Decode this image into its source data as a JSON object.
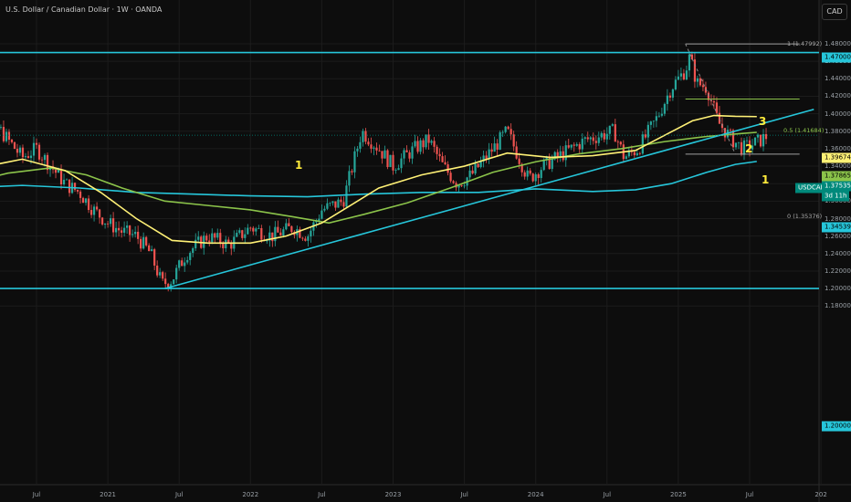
{
  "header": {
    "title": "U.S. Dollar / Canadian Dollar · 1W · OANDA",
    "currency": "CAD"
  },
  "price_axis": [
    "1.48000",
    "1.46000",
    "1.44000",
    "1.42000",
    "1.40000",
    "1.38000",
    "1.36000",
    "1.34000",
    "1.32000",
    "1.30000",
    "1.28000",
    "1.26000",
    "1.24000",
    "1.22000",
    "1.20000",
    "1.18000"
  ],
  "badges": {
    "res": "1.47000",
    "ma_yellow": "1.39674",
    "ma_green": "1.37865",
    "symbol": "USDCAD",
    "price": "1.37535",
    "timer": "3d 11h",
    "ma_blue": "1.34539",
    "sup": "1.20000"
  },
  "fib": {
    "top": "1 (1.47992)",
    "mid": "0.5 (1.41684)",
    "bottom": "0 (1.35376)"
  },
  "waves": {
    "left": "1",
    "w3": "3",
    "w2": "2",
    "w1": "1"
  },
  "chart_data": {
    "type": "line",
    "title": "U.S. Dollar / Canadian Dollar · 1W · OANDA",
    "ylim": [
      1.17,
      1.49
    ],
    "x_ticks": [
      "Jul",
      "2021",
      "Jul",
      "2022",
      "Jul",
      "2023",
      "Jul",
      "2024",
      "Jul",
      "2025",
      "Jul",
      "202"
    ],
    "close": [
      [
        2020.0,
        1.44
      ],
      [
        2020.1,
        1.42
      ],
      [
        2020.2,
        1.39
      ],
      [
        2020.3,
        1.37
      ],
      [
        2020.4,
        1.35
      ],
      [
        2020.5,
        1.36
      ],
      [
        2020.6,
        1.34
      ],
      [
        2020.7,
        1.32
      ],
      [
        2020.8,
        1.31
      ],
      [
        2020.9,
        1.29
      ],
      [
        2021.0,
        1.275
      ],
      [
        2021.1,
        1.265
      ],
      [
        2021.2,
        1.26
      ],
      [
        2021.3,
        1.24
      ],
      [
        2021.38,
        1.205
      ],
      [
        2021.45,
        1.21
      ],
      [
        2021.55,
        1.24
      ],
      [
        2021.7,
        1.26
      ],
      [
        2021.85,
        1.25
      ],
      [
        2022.0,
        1.27
      ],
      [
        2022.15,
        1.26
      ],
      [
        2022.3,
        1.27
      ],
      [
        2022.4,
        1.26
      ],
      [
        2022.5,
        1.29
      ],
      [
        2022.65,
        1.3
      ],
      [
        2022.78,
        1.38
      ],
      [
        2022.9,
        1.36
      ],
      [
        2023.0,
        1.34
      ],
      [
        2023.15,
        1.36
      ],
      [
        2023.25,
        1.37
      ],
      [
        2023.35,
        1.34
      ],
      [
        2023.45,
        1.32
      ],
      [
        2023.55,
        1.33
      ],
      [
        2023.65,
        1.35
      ],
      [
        2023.8,
        1.38
      ],
      [
        2023.95,
        1.325
      ],
      [
        2024.05,
        1.34
      ],
      [
        2024.2,
        1.355
      ],
      [
        2024.35,
        1.37
      ],
      [
        2024.45,
        1.375
      ],
      [
        2024.55,
        1.38
      ],
      [
        2024.62,
        1.35
      ],
      [
        2024.72,
        1.36
      ],
      [
        2024.85,
        1.395
      ],
      [
        2024.95,
        1.43
      ],
      [
        2025.05,
        1.45
      ],
      [
        2025.08,
        1.465
      ],
      [
        2025.13,
        1.435
      ],
      [
        2025.2,
        1.43
      ],
      [
        2025.28,
        1.39
      ],
      [
        2025.38,
        1.37
      ],
      [
        2025.45,
        1.36
      ],
      [
        2025.52,
        1.365
      ],
      [
        2025.58,
        1.37
      ],
      [
        2025.63,
        1.3754
      ]
    ],
    "ma_yellow": [
      [
        2020.0,
        1.335
      ],
      [
        2020.4,
        1.348
      ],
      [
        2020.7,
        1.335
      ],
      [
        2020.95,
        1.31
      ],
      [
        2021.2,
        1.28
      ],
      [
        2021.45,
        1.255
      ],
      [
        2021.7,
        1.252
      ],
      [
        2022.0,
        1.252
      ],
      [
        2022.25,
        1.26
      ],
      [
        2022.5,
        1.275
      ],
      [
        2022.7,
        1.295
      ],
      [
        2022.9,
        1.315
      ],
      [
        2023.2,
        1.33
      ],
      [
        2023.5,
        1.34
      ],
      [
        2023.8,
        1.355
      ],
      [
        2024.1,
        1.35
      ],
      [
        2024.4,
        1.352
      ],
      [
        2024.7,
        1.358
      ],
      [
        2024.9,
        1.375
      ],
      [
        2025.1,
        1.392
      ],
      [
        2025.25,
        1.398
      ],
      [
        2025.4,
        1.397
      ],
      [
        2025.55,
        1.3967
      ]
    ],
    "ma_green": [
      [
        2020.0,
        1.32
      ],
      [
        2020.3,
        1.332
      ],
      [
        2020.6,
        1.338
      ],
      [
        2020.85,
        1.33
      ],
      [
        2021.1,
        1.315
      ],
      [
        2021.4,
        1.3
      ],
      [
        2021.7,
        1.295
      ],
      [
        2022.0,
        1.29
      ],
      [
        2022.3,
        1.282
      ],
      [
        2022.55,
        1.275
      ],
      [
        2022.8,
        1.285
      ],
      [
        2023.1,
        1.298
      ],
      [
        2023.4,
        1.315
      ],
      [
        2023.7,
        1.333
      ],
      [
        2024.0,
        1.345
      ],
      [
        2024.3,
        1.354
      ],
      [
        2024.6,
        1.36
      ],
      [
        2024.9,
        1.368
      ],
      [
        2025.2,
        1.374
      ],
      [
        2025.45,
        1.3775
      ],
      [
        2025.55,
        1.3787
      ]
    ],
    "ma_blue": [
      [
        2020.0,
        1.315
      ],
      [
        2020.4,
        1.318
      ],
      [
        2020.8,
        1.315
      ],
      [
        2021.2,
        1.31
      ],
      [
        2021.6,
        1.308
      ],
      [
        2022.0,
        1.306
      ],
      [
        2022.4,
        1.305
      ],
      [
        2022.8,
        1.308
      ],
      [
        2023.2,
        1.31
      ],
      [
        2023.6,
        1.31
      ],
      [
        2024.0,
        1.314
      ],
      [
        2024.4,
        1.311
      ],
      [
        2024.7,
        1.313
      ],
      [
        2024.95,
        1.32
      ],
      [
        2025.2,
        1.333
      ],
      [
        2025.4,
        1.342
      ],
      [
        2025.55,
        1.3454
      ]
    ],
    "levels": {
      "resistance": 1.47,
      "support": 1.2,
      "fib_1": 1.47992,
      "fib_05": 1.41684,
      "fib_0": 1.35376
    },
    "trendline": [
      [
        2021.4,
        1.2
      ],
      [
        2025.95,
        1.405
      ]
    ]
  }
}
